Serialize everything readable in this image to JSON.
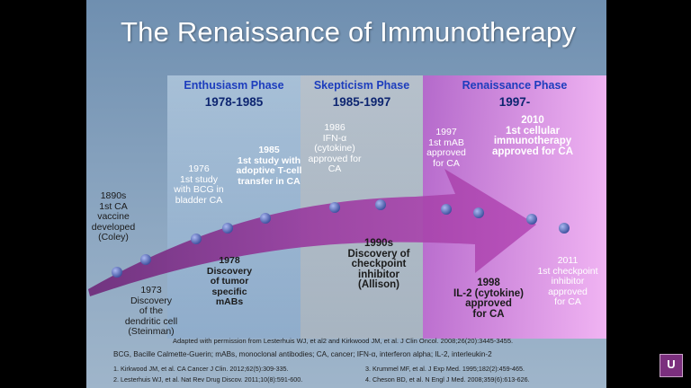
{
  "slide": {
    "title": "The Renaissance of Immunotherapy",
    "phases": [
      {
        "name": "Enthusiasm Phase",
        "years": "1978-1985"
      },
      {
        "name": "Skepticism Phase",
        "years": "1985-1997"
      },
      {
        "name": "Renaissance Phase",
        "years": "1997-"
      }
    ],
    "events": [
      {
        "id": "e1890",
        "text": "1890s\n1st CA\nvaccine\ndeveloped\n(Coley)"
      },
      {
        "id": "e1973",
        "text": "1973\nDiscovery\nof the\ndendritic cell\n(Steinman)"
      },
      {
        "id": "e1976",
        "text": "1976\n1st study\nwith BCG in\nbladder CA"
      },
      {
        "id": "e1978",
        "text": "1978\nDiscovery\nof tumor\nspecific\nmABs"
      },
      {
        "id": "e1985",
        "text": "1985\n1st study with\nadoptive T-cell\ntransfer in CA"
      },
      {
        "id": "e1986",
        "text": "1986\nIFN-α\n(cytokine)\napproved for\nCA"
      },
      {
        "id": "e1990",
        "text": "1990s\nDiscovery of\ncheckpoint\ninhibitor\n(Allison)"
      },
      {
        "id": "e1997",
        "text": "1997\n1st mAB\napproved\nfor CA"
      },
      {
        "id": "e1998",
        "text": "1998\nIL-2 (cytokine)\napproved\nfor CA"
      },
      {
        "id": "e2010",
        "text": "2010\n1st cellular\nimmunotherapy\napproved for CA"
      },
      {
        "id": "e2011",
        "text": "2011\n1st checkpoint\ninhibitor\napproved\nfor CA"
      }
    ],
    "caption": "Adapted with permission from Lesterhuis WJ, et al2 and Kirkwood JM, et al. J Clin Oncol. 2008;26(20):3445-3455.",
    "abbreviations": "BCG, Bacille Calmette-Guerin; mABs, monoclonal antibodies; CA, cancer; IFN-α, interferon alpha; IL-2, interleukin-2",
    "references": [
      "1.   Kirkwood JM, et al. CA Cancer J Clin. 2012;62(5):309-335.",
      "2.   Lesterhuis WJ, et al. Nat Rev Drug Discov. 2011;10(8):591-600.",
      "3.   Krummel MF, et al. J Exp Med. 1995;182(2):459-465.",
      "4.   Cheson BD, et al. N Engl J Med. 2008;359(6):613-626."
    ]
  },
  "logo": {
    "letter": "U"
  },
  "colors": {
    "phase_name": "#1d3dbd",
    "phase_years": "#0d2570",
    "arrow": "#8a2a8a",
    "dot": "#4a5fb0"
  }
}
